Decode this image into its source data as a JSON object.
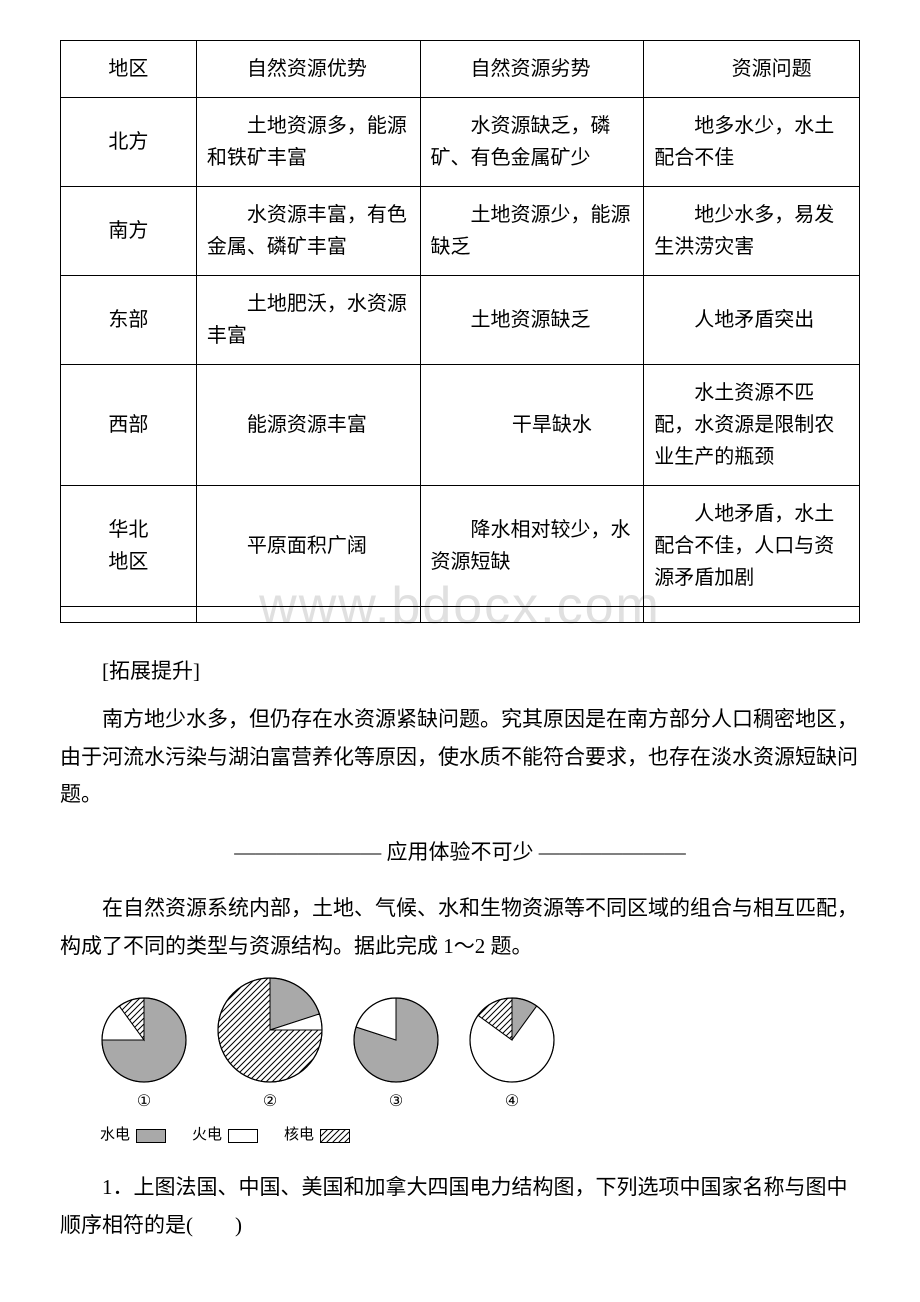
{
  "table": {
    "header": {
      "region": "地区",
      "advantage": "自然资源优势",
      "disadvantage": "自然资源劣势",
      "issue": "资源问题"
    },
    "rows": [
      {
        "region": "北方",
        "advantage": "土地资源多，能源和铁矿丰富",
        "disadvantage": "水资源缺乏，磷矿、有色金属矿少",
        "issue": "地多水少，水土配合不佳"
      },
      {
        "region": "南方",
        "advantage": "水资源丰富，有色金属、磷矿丰富",
        "disadvantage": "土地资源少，能源缺乏",
        "issue": "地少水多，易发生洪涝灾害"
      },
      {
        "region": "东部",
        "advantage": "土地肥沃，水资源丰富",
        "disadvantage": "土地资源缺乏",
        "issue": "人地矛盾突出"
      },
      {
        "region": "西部",
        "advantage": "能源资源丰富",
        "disadvantage": "干旱缺水",
        "issue": "水土资源不匹配，水资源是限制农业生产的瓶颈"
      },
      {
        "region": "华北\n地区",
        "advantage": "平原面积广阔",
        "disadvantage": "降水相对较少，水资源短缺",
        "issue": "人地矛盾，水土配合不佳，人口与资源矛盾加剧"
      }
    ]
  },
  "watermark": "www.bdocx.com",
  "extension_title": "[拓展提升]",
  "extension_body": "南方地少水多，但仍存在水资源紧缺问题。究其原因是在南方部分人口稠密地区，由于河流水污染与湖泊富营养化等原因，使水质不能符合要求，也存在淡水资源短缺问题。",
  "divider": "——————— 应用体验不可少 ———————",
  "intro_para": "在自然资源系统内部，土地、气候、水和生物资源等不同区域的组合与相互匹配，构成了不同的类型与资源结构。据此完成 1～2 题。",
  "charts": {
    "type": "pie",
    "background_color": "#ffffff",
    "colors": {
      "hydro": "#a9a9a9",
      "thermal": "#ffffff",
      "nuclear_pattern": "diagonal-hatch",
      "stroke": "#000000"
    },
    "pies": [
      {
        "label": "①",
        "radius": 42,
        "slices": [
          {
            "name": "hydro",
            "value": 75
          },
          {
            "name": "thermal",
            "value": 15
          },
          {
            "name": "nuclear",
            "value": 10
          }
        ]
      },
      {
        "label": "②",
        "radius": 52,
        "slices": [
          {
            "name": "hydro",
            "value": 20
          },
          {
            "name": "thermal",
            "value": 5
          },
          {
            "name": "nuclear",
            "value": 75
          }
        ]
      },
      {
        "label": "③",
        "radius": 42,
        "slices": [
          {
            "name": "hydro",
            "value": 80
          },
          {
            "name": "thermal",
            "value": 20
          },
          {
            "name": "nuclear",
            "value": 0
          }
        ]
      },
      {
        "label": "④",
        "radius": 42,
        "slices": [
          {
            "name": "hydro",
            "value": 10
          },
          {
            "name": "thermal",
            "value": 75
          },
          {
            "name": "nuclear",
            "value": 15
          }
        ]
      }
    ],
    "legend": [
      {
        "name": "hydro",
        "label": "水电",
        "fill": "#a9a9a9"
      },
      {
        "name": "thermal",
        "label": "火电",
        "fill": "#ffffff"
      },
      {
        "name": "nuclear",
        "label": "核电",
        "fill": "pattern"
      }
    ]
  },
  "question1": "1．上图法国、中国、美国和加拿大四国电力结构图，下列选项中国家名称与图中顺序相符的是(　　)"
}
